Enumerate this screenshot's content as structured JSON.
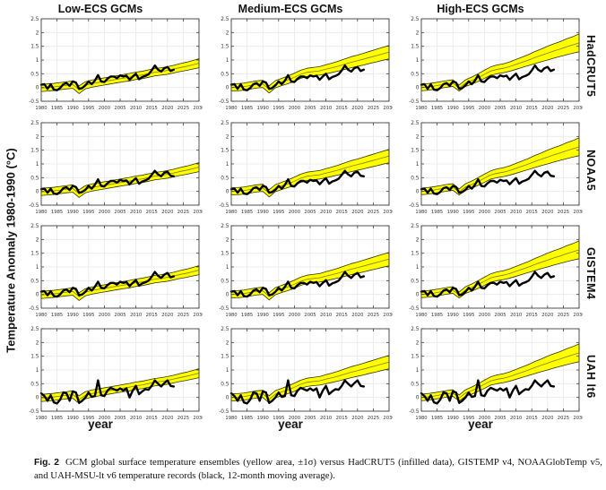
{
  "figure": {
    "column_titles": [
      "Low-ECS GCMs",
      "Medium-ECS GCMs",
      "High-ECS GCMs"
    ],
    "row_labels": [
      "HadCRUT5",
      "NOAA5",
      "GISTEM4",
      "UAH lt6"
    ],
    "ylabel": "Temperature Anomaly 1980-1990 (°C)",
    "xlabel": "year",
    "caption": {
      "fig_label": "Fig. 2",
      "text": "GCM global surface temperature ensembles (yellow area, ±1σ) versus HadCRUT5 (infilled data), GISTEMP v4, NOAAGlobTemp v5, and UAH-MSU-lt v6 temperature records (black, 12-month moving average)."
    },
    "colors": {
      "band_fill": "#ffff00",
      "band_edge": "#333300",
      "band_center_line": "#7d7d00",
      "obs_line": "#000000",
      "grid": "#e8e8e8",
      "frame": "#404040",
      "tick_text": "#333333"
    }
  },
  "chart_data": {
    "type": "line",
    "layout": "3 columns (GCM ensembles: yellow band = ensemble mean ±1σ) × 4 rows (observational records: black line, 12-month moving average)",
    "xlim": [
      1980,
      2030
    ],
    "ylim": [
      -0.5,
      2.5
    ],
    "x_ticks": [
      1980,
      1985,
      1990,
      1995,
      2000,
      2005,
      2010,
      2015,
      2020,
      2025,
      2030
    ],
    "y_ticks": [
      -0.5,
      0,
      0.5,
      1,
      1.5,
      2,
      2.5
    ],
    "band_years": [
      1980,
      1982,
      1984,
      1986,
      1988,
      1990,
      1992,
      1994,
      1996,
      1998,
      2000,
      2002,
      2004,
      2006,
      2008,
      2010,
      2012,
      2014,
      2016,
      2018,
      2020,
      2022,
      2024,
      2026,
      2028,
      2030
    ],
    "bands": {
      "low": {
        "name": "Low-ECS GCMs",
        "lower": [
          -0.15,
          -0.13,
          -0.11,
          -0.08,
          -0.05,
          -0.03,
          -0.22,
          -0.05,
          0.01,
          0.05,
          0.09,
          0.13,
          0.17,
          0.21,
          0.24,
          0.29,
          0.32,
          0.37,
          0.42,
          0.45,
          0.48,
          0.53,
          0.58,
          0.62,
          0.67,
          0.72
        ],
        "upper": [
          0.11,
          0.13,
          0.15,
          0.18,
          0.21,
          0.24,
          0.06,
          0.21,
          0.27,
          0.31,
          0.35,
          0.39,
          0.43,
          0.47,
          0.51,
          0.56,
          0.59,
          0.64,
          0.69,
          0.72,
          0.76,
          0.81,
          0.87,
          0.92,
          0.98,
          1.05
        ]
      },
      "medium": {
        "name": "Medium-ECS GCMs",
        "lower": [
          -0.13,
          -0.12,
          -0.1,
          -0.06,
          -0.02,
          0.0,
          -0.2,
          -0.01,
          0.07,
          0.14,
          0.22,
          0.33,
          0.4,
          0.43,
          0.45,
          0.5,
          0.55,
          0.6,
          0.66,
          0.72,
          0.77,
          0.82,
          0.88,
          0.93,
          0.99,
          1.04
        ],
        "upper": [
          0.13,
          0.14,
          0.16,
          0.2,
          0.24,
          0.26,
          0.06,
          0.25,
          0.33,
          0.42,
          0.52,
          0.63,
          0.7,
          0.73,
          0.76,
          0.83,
          0.89,
          0.96,
          1.04,
          1.12,
          1.18,
          1.25,
          1.32,
          1.39,
          1.46,
          1.53
        ]
      },
      "high": {
        "name": "High-ECS GCMs",
        "lower": [
          -0.12,
          -0.1,
          -0.07,
          -0.03,
          0.01,
          0.04,
          -0.13,
          0.04,
          0.12,
          0.22,
          0.33,
          0.45,
          0.5,
          0.54,
          0.59,
          0.66,
          0.73,
          0.8,
          0.87,
          0.94,
          1.0,
          1.07,
          1.13,
          1.19,
          1.25,
          1.3
        ],
        "upper": [
          0.12,
          0.14,
          0.17,
          0.21,
          0.25,
          0.28,
          0.09,
          0.28,
          0.38,
          0.5,
          0.63,
          0.75,
          0.82,
          0.86,
          0.93,
          1.02,
          1.11,
          1.2,
          1.31,
          1.4,
          1.5,
          1.59,
          1.67,
          1.77,
          1.85,
          1.95
        ]
      }
    },
    "obs_years": [
      1980,
      1981,
      1982,
      1983,
      1984,
      1985,
      1986,
      1987,
      1988,
      1989,
      1990,
      1991,
      1992,
      1993,
      1994,
      1995,
      1996,
      1997,
      1998,
      1999,
      2000,
      2001,
      2002,
      2003,
      2004,
      2005,
      2006,
      2007,
      2008,
      2009,
      2010,
      2011,
      2012,
      2013,
      2014,
      2015,
      2016,
      2017,
      2018,
      2019,
      2020,
      2021,
      2022
    ],
    "observations": [
      {
        "name": "HadCRUT5",
        "values": [
          0.1,
          0.12,
          -0.05,
          0.12,
          -0.08,
          -0.1,
          -0.02,
          0.12,
          0.16,
          0.06,
          0.22,
          0.18,
          -0.05,
          -0.02,
          0.08,
          0.22,
          0.12,
          0.25,
          0.45,
          0.22,
          0.2,
          0.32,
          0.4,
          0.4,
          0.34,
          0.44,
          0.4,
          0.43,
          0.28,
          0.4,
          0.5,
          0.3,
          0.38,
          0.42,
          0.48,
          0.62,
          0.8,
          0.65,
          0.58,
          0.7,
          0.75,
          0.6,
          0.65
        ]
      },
      {
        "name": "NOAA5",
        "values": [
          0.08,
          0.1,
          -0.05,
          0.1,
          -0.08,
          -0.1,
          -0.02,
          0.12,
          0.15,
          0.05,
          0.2,
          0.16,
          -0.05,
          -0.02,
          0.06,
          0.2,
          0.1,
          0.24,
          0.44,
          0.2,
          0.18,
          0.3,
          0.38,
          0.38,
          0.32,
          0.42,
          0.38,
          0.4,
          0.26,
          0.38,
          0.48,
          0.28,
          0.36,
          0.4,
          0.46,
          0.6,
          0.75,
          0.62,
          0.55,
          0.68,
          0.72,
          0.57,
          0.55
        ]
      },
      {
        "name": "GISTEM4",
        "values": [
          0.1,
          0.12,
          -0.03,
          0.12,
          -0.06,
          -0.08,
          0.0,
          0.14,
          0.18,
          0.08,
          0.24,
          0.2,
          -0.03,
          0.0,
          0.1,
          0.24,
          0.14,
          0.28,
          0.46,
          0.24,
          0.22,
          0.34,
          0.42,
          0.42,
          0.36,
          0.46,
          0.42,
          0.45,
          0.3,
          0.42,
          0.52,
          0.32,
          0.4,
          0.44,
          0.5,
          0.64,
          0.82,
          0.68,
          0.6,
          0.72,
          0.78,
          0.62,
          0.66
        ]
      },
      {
        "name": "UAH lt6",
        "values": [
          0.15,
          0.05,
          -0.12,
          0.08,
          -0.18,
          -0.22,
          -0.08,
          0.18,
          0.15,
          -0.12,
          0.22,
          0.18,
          -0.2,
          -0.12,
          0.0,
          0.18,
          0.02,
          0.05,
          0.62,
          0.08,
          0.05,
          0.25,
          0.35,
          0.3,
          0.25,
          0.33,
          0.25,
          0.33,
          0.0,
          0.25,
          0.42,
          0.12,
          0.22,
          0.3,
          0.28,
          0.42,
          0.62,
          0.5,
          0.4,
          0.52,
          0.62,
          0.42,
          0.4
        ]
      }
    ]
  }
}
